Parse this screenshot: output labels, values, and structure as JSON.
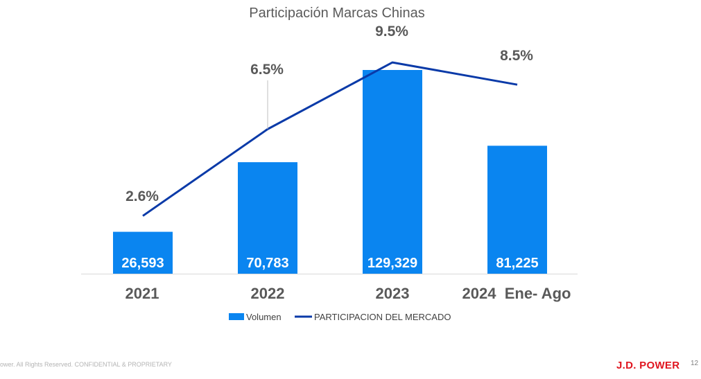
{
  "chart_data": {
    "type": "bar+line",
    "title": "Participación Marcas Chinas",
    "categories": [
      "2021",
      "2022",
      "2023",
      "2024  Ene- Ago"
    ],
    "series": [
      {
        "name": "Volumen",
        "kind": "bar",
        "values": [
          26593,
          70783,
          129329,
          81225
        ],
        "labels": [
          "26,593",
          "70,783",
          "129,329",
          "81,225"
        ],
        "color": "#0a85f0"
      },
      {
        "name": "PARTICIPACION DEL MERCADO",
        "kind": "line",
        "values": [
          2.6,
          6.5,
          9.5,
          8.5
        ],
        "labels": [
          "2.6%",
          "6.5%",
          "9.5%",
          "8.5%"
        ],
        "color": "#0a3aa8"
      }
    ],
    "bar_axis_range": [
      0,
      140000
    ],
    "line_axis_range": [
      0,
      10.5
    ],
    "legend_position": "bottom",
    "grid": false
  },
  "footer": {
    "copyright": "ower. All Rights Reserved. CONFIDENTIAL & PROPRIETARY",
    "brand": "J.D. POWER",
    "page_number": "12"
  }
}
